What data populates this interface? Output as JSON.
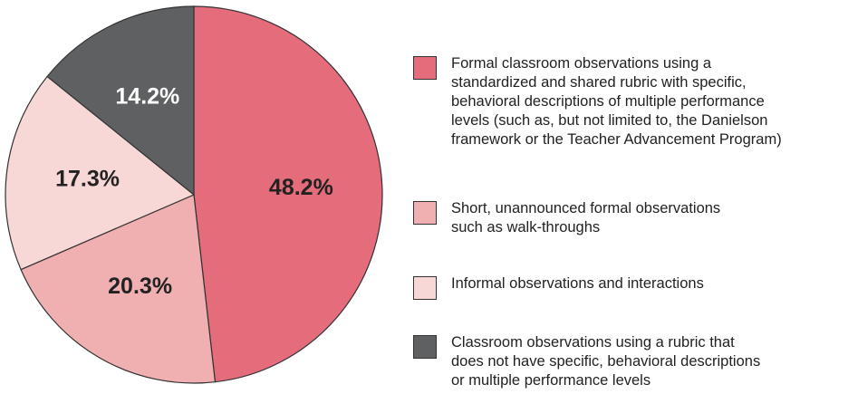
{
  "chart_data": {
    "type": "pie",
    "categories": [
      "Formal classroom observations using a\nstandardized and shared rubric with specific,\nbehavioral descriptions of multiple performance\nlevels (such as, but not limited to, the Danielson\nframework or the Teacher Advancement Program)",
      "Short, unannounced formal observations\nsuch as walk-throughs",
      "Informal observations and interactions",
      "Classroom observations using a rubric that\ndoes not have specific, behavioral descriptions\nor multiple performance levels"
    ],
    "values": [
      48.2,
      20.3,
      17.3,
      14.2
    ],
    "value_labels": [
      "48.2%",
      "20.3%",
      "17.3%",
      "14.2%"
    ],
    "colors": [
      "#e46c7b",
      "#f0b0b2",
      "#f8d7d7",
      "#5f6062"
    ],
    "label_colors": [
      "#222222",
      "#222222",
      "#222222",
      "#ffffff"
    ],
    "legend": "right"
  }
}
